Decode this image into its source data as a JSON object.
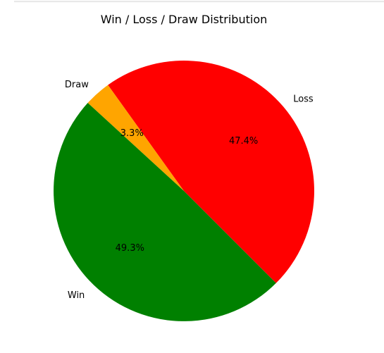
{
  "chart_data": {
    "type": "pie",
    "title": "Win / Loss / Draw Distribution",
    "categories": [
      "Loss",
      "Draw",
      "Win"
    ],
    "values": [
      47.4,
      3.3,
      49.3
    ],
    "labels": [
      "47.4%",
      "3.3%",
      "49.3%"
    ],
    "colors": [
      "#ff0000",
      "#ffa500",
      "#008000"
    ],
    "start_angle_deg": -45,
    "direction": "counterclockwise"
  }
}
